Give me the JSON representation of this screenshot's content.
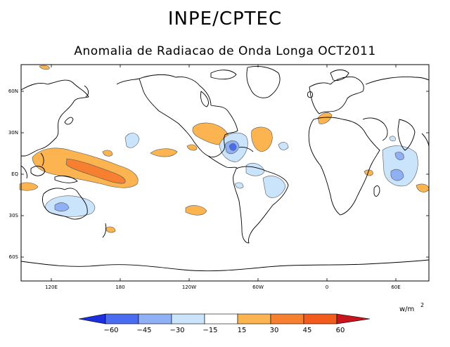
{
  "header": {
    "title": "INPE/CPTEC",
    "subtitle": "Anomalia de Radiacao de Onda Longa OCT2011"
  },
  "map": {
    "lat_labels": [
      "60N",
      "30N",
      "EQ",
      "30S",
      "60S"
    ],
    "lon_labels": [
      "120E",
      "180",
      "120W",
      "60W",
      "0",
      "60E"
    ]
  },
  "colorbar": {
    "unit": "w/m",
    "unit_exp": "2",
    "levels": [
      "−60",
      "−45",
      "−30",
      "−15",
      "15",
      "30",
      "45",
      "60"
    ],
    "colors": [
      "#1b2fe0",
      "#4a6cf0",
      "#8fb0f5",
      "#c9e4fb",
      "#ffffff",
      "#fbb450",
      "#f77f30",
      "#f25a1e",
      "#c8141e"
    ]
  }
}
